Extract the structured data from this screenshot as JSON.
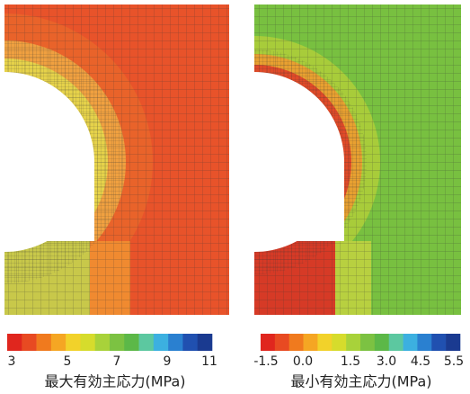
{
  "panels": [
    {
      "label": "最大有効主応力(MPa)",
      "colorbar": {
        "colors": [
          "#e0261e",
          "#e84a22",
          "#f07a1e",
          "#f5a623",
          "#f2d22a",
          "#d6dc2c",
          "#a8d23a",
          "#7cc242",
          "#5cb848",
          "#5cc8a0",
          "#3cb0e0",
          "#2a80d0",
          "#2050b0",
          "#1a3a90"
        ],
        "ticks": [
          "3",
          "5",
          "7",
          "9",
          "11"
        ]
      }
    },
    {
      "label": "最小有効主応力(MPa)",
      "colorbar": {
        "colors": [
          "#e0261e",
          "#e84a22",
          "#f07a1e",
          "#f5a623",
          "#f2d22a",
          "#d6dc2c",
          "#a8d23a",
          "#7cc242",
          "#5cb848",
          "#5cc8a0",
          "#3cb0e0",
          "#2a80d0",
          "#2050b0",
          "#1a3a90"
        ],
        "ticks": [
          "-1.5",
          "0.0",
          "1.5",
          "3.0",
          "4.5",
          "5.5"
        ]
      }
    }
  ]
}
